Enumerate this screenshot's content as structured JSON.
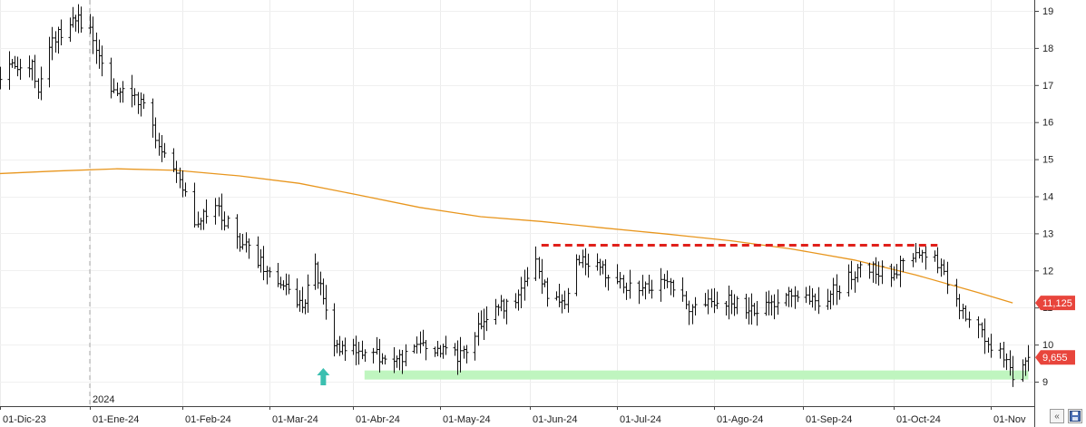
{
  "chart_data": {
    "type": "ohlc",
    "instrument_label": "",
    "year_marker": "2024",
    "x_tick_labels": [
      "01-Dic-23",
      "01-Ene-24",
      "01-Feb-24",
      "01-Mar-24",
      "01-Abr-24",
      "01-May-24",
      "01-Jun-24",
      "01-Jul-24",
      "01-Ago-24",
      "01-Sep-24",
      "01-Oct-24",
      "01-Nov"
    ],
    "y_tick_labels": [
      "9",
      "10",
      "11",
      "12",
      "13",
      "14",
      "15",
      "16",
      "17",
      "18",
      "19"
    ],
    "ylim": [
      8.8,
      19.3
    ],
    "grid": true,
    "last_price": {
      "label": "9,655",
      "value": 9.655,
      "color": "#e8453c"
    },
    "moving_average_label": {
      "label": "11,125",
      "value": 11.125,
      "color": "#e8453c"
    },
    "moving_average": {
      "color": "#e8961e",
      "points": [
        {
          "date": "2023-11-27",
          "value": 14.6
        },
        {
          "date": "2023-12-20",
          "value": 14.68
        },
        {
          "date": "2024-01-10",
          "value": 14.74
        },
        {
          "date": "2024-01-30",
          "value": 14.7
        },
        {
          "date": "2024-02-20",
          "value": 14.55
        },
        {
          "date": "2024-03-12",
          "value": 14.35
        },
        {
          "date": "2024-04-02",
          "value": 14.05
        },
        {
          "date": "2024-04-24",
          "value": 13.7
        },
        {
          "date": "2024-05-15",
          "value": 13.45
        },
        {
          "date": "2024-06-05",
          "value": 13.32
        },
        {
          "date": "2024-06-26",
          "value": 13.15
        },
        {
          "date": "2024-07-17",
          "value": 12.98
        },
        {
          "date": "2024-08-07",
          "value": 12.8
        },
        {
          "date": "2024-08-28",
          "value": 12.58
        },
        {
          "date": "2024-09-18",
          "value": 12.28
        },
        {
          "date": "2024-10-08",
          "value": 11.88
        },
        {
          "date": "2024-10-28",
          "value": 11.4
        },
        {
          "date": "2024-11-08",
          "value": 11.125
        }
      ]
    },
    "resistance_line": {
      "value": 12.68,
      "from": "2024-06-05",
      "to": "2024-10-15",
      "color": "#e0201b",
      "style": "dashed"
    },
    "support_zone": {
      "value": 9.18,
      "from": "2024-04-05",
      "to": "2024-11-13",
      "color": "#bff5bf"
    },
    "marker": {
      "type": "arrow-up",
      "date": "2024-03-21",
      "color": "#3bbfb0"
    },
    "ohlc_anchors": [
      {
        "date": "2023-11-27",
        "close": 16.7
      },
      {
        "date": "2023-12-05",
        "close": 17.6
      },
      {
        "date": "2023-12-12",
        "close": 17.5
      },
      {
        "date": "2023-12-14",
        "close": 16.7
      },
      {
        "date": "2023-12-18",
        "close": 18.1
      },
      {
        "date": "2023-12-27",
        "close": 18.85
      },
      {
        "date": "2024-01-02",
        "close": 18.3
      },
      {
        "date": "2024-01-08",
        "close": 16.9
      },
      {
        "date": "2024-01-18",
        "close": 16.6
      },
      {
        "date": "2024-01-22",
        "close": 15.8
      },
      {
        "date": "2024-01-29",
        "close": 14.6
      },
      {
        "date": "2024-02-01",
        "close": 14.3
      },
      {
        "date": "2024-02-05",
        "close": 13.3
      },
      {
        "date": "2024-02-12",
        "close": 13.7
      },
      {
        "date": "2024-02-20",
        "close": 12.8
      },
      {
        "date": "2024-03-04",
        "close": 11.7
      },
      {
        "date": "2024-03-13",
        "close": 11.0
      },
      {
        "date": "2024-03-18",
        "close": 12.1
      },
      {
        "date": "2024-03-21",
        "close": 11.3
      },
      {
        "date": "2024-03-25",
        "close": 10.0
      },
      {
        "date": "2024-04-05",
        "close": 9.85
      },
      {
        "date": "2024-04-15",
        "close": 9.5
      },
      {
        "date": "2024-04-24",
        "close": 9.9
      },
      {
        "date": "2024-05-08",
        "close": 9.7
      },
      {
        "date": "2024-05-14",
        "close": 10.4
      },
      {
        "date": "2024-05-22",
        "close": 11.0
      },
      {
        "date": "2024-05-28",
        "close": 11.3
      },
      {
        "date": "2024-06-03",
        "close": 12.15
      },
      {
        "date": "2024-06-07",
        "close": 11.4
      },
      {
        "date": "2024-06-13",
        "close": 11.0
      },
      {
        "date": "2024-06-17",
        "close": 12.4
      },
      {
        "date": "2024-06-26",
        "close": 12.0
      },
      {
        "date": "2024-07-05",
        "close": 11.5
      },
      {
        "date": "2024-07-17",
        "close": 11.7
      },
      {
        "date": "2024-07-24",
        "close": 11.0
      },
      {
        "date": "2024-08-07",
        "close": 11.2
      },
      {
        "date": "2024-08-14",
        "close": 10.9
      },
      {
        "date": "2024-08-28",
        "close": 11.4
      },
      {
        "date": "2024-09-05",
        "close": 11.1
      },
      {
        "date": "2024-09-12",
        "close": 11.5
      },
      {
        "date": "2024-09-20",
        "close": 12.1
      },
      {
        "date": "2024-09-30",
        "close": 11.9
      },
      {
        "date": "2024-10-09",
        "close": 12.5
      },
      {
        "date": "2024-10-15",
        "close": 12.2
      },
      {
        "date": "2024-10-18",
        "close": 11.6
      },
      {
        "date": "2024-10-24",
        "close": 10.8
      },
      {
        "date": "2024-10-31",
        "close": 10.1
      },
      {
        "date": "2024-11-06",
        "close": 9.6
      },
      {
        "date": "2024-11-08",
        "close": 9.1
      },
      {
        "date": "2024-11-13",
        "close": 9.655
      }
    ]
  }
}
